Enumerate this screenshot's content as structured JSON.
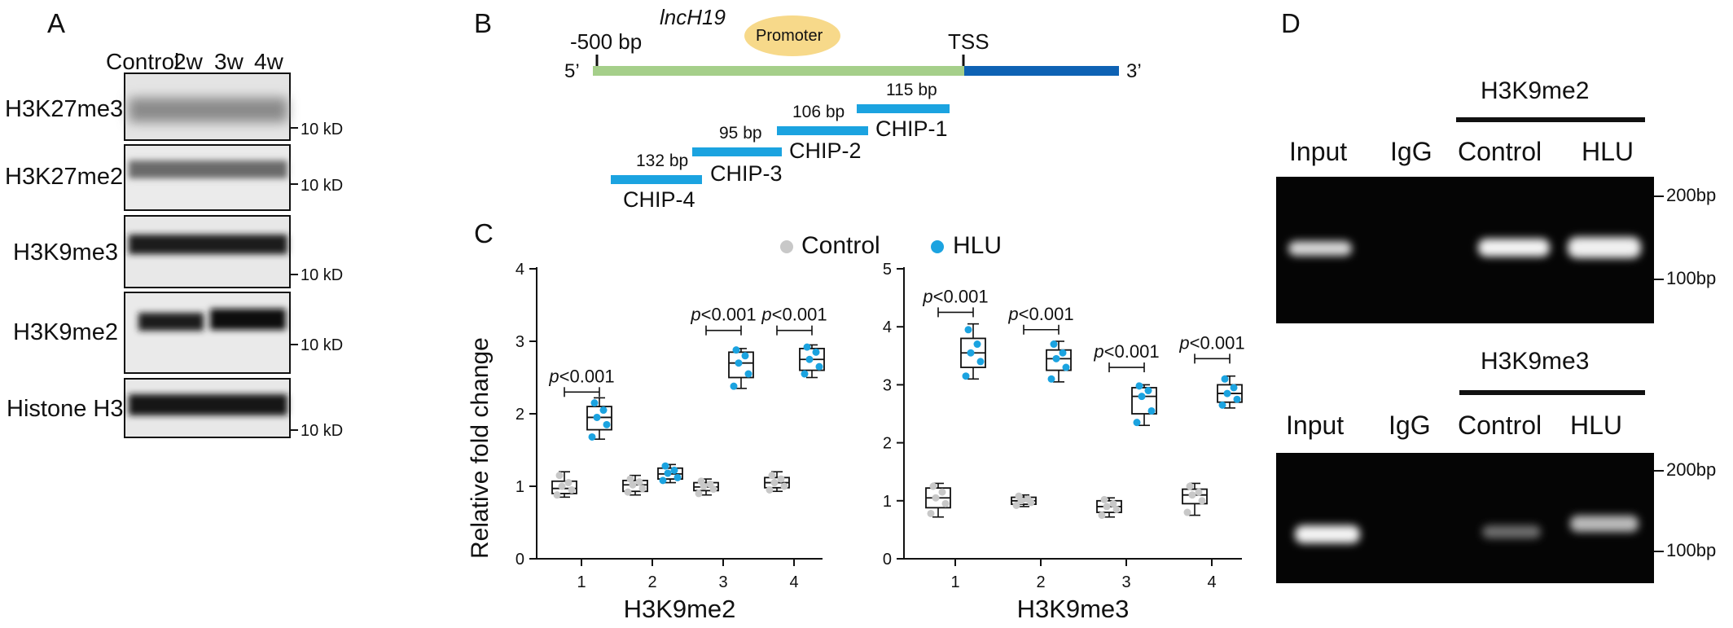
{
  "panels": {
    "a": {
      "letter": "A",
      "lanes": [
        "Control",
        "2w",
        "3w",
        "4w"
      ],
      "blots": [
        {
          "label": "H3K27me3",
          "marker": "10 kD"
        },
        {
          "label": "H3K27me2",
          "marker": "10 kD"
        },
        {
          "label": "H3K9me3",
          "marker": "10 kD"
        },
        {
          "label": "H3K9me2",
          "marker": "10 kD"
        },
        {
          "label": "Histone H3",
          "marker": "10 kD"
        }
      ]
    },
    "b": {
      "letter": "B",
      "gene": "lncH19",
      "promoter": "Promoter",
      "start_label": "-500 bp",
      "tss": "TSS",
      "five_prime": "5’",
      "three_prime": "3’",
      "amplicons": [
        {
          "name": "CHIP-1",
          "size": "115 bp"
        },
        {
          "name": "CHIP-2",
          "size": "106 bp"
        },
        {
          "name": "CHIP-3",
          "size": "95 bp"
        },
        {
          "name": "CHIP-4",
          "size": "132 bp"
        }
      ]
    },
    "c": {
      "letter": "C",
      "legend": [
        {
          "name": "Control",
          "color": "#c8c8c8"
        },
        {
          "name": "HLU",
          "color": "#1ba3e0"
        }
      ],
      "ylabel": "Relative fold change"
    },
    "d": {
      "letter": "D",
      "gels": [
        {
          "title": "H3K9me2",
          "lanes": [
            "Input",
            "IgG",
            "Control",
            "HLU"
          ],
          "markers": [
            "200bp",
            "100bp"
          ]
        },
        {
          "title": "H3K9me3",
          "lanes": [
            "Input",
            "IgG",
            "Control",
            "HLU"
          ],
          "markers": [
            "200bp",
            "100bp"
          ]
        }
      ]
    }
  },
  "chart_data": [
    {
      "type": "box",
      "xlabel": "H3K9me2",
      "ylabel": "Relative fold change",
      "categories": [
        "1",
        "2",
        "3",
        "4"
      ],
      "ylim": [
        0,
        4
      ],
      "yticks": [
        0,
        1,
        2,
        3,
        4
      ],
      "series": [
        {
          "name": "Control",
          "color": "#c8c8c8",
          "box": [
            {
              "min": 0.85,
              "q1": 0.9,
              "median": 0.97,
              "q3": 1.07,
              "max": 1.2
            },
            {
              "min": 0.88,
              "q1": 0.93,
              "median": 1.02,
              "q3": 1.08,
              "max": 1.15
            },
            {
              "min": 0.88,
              "q1": 0.94,
              "median": 0.99,
              "q3": 1.05,
              "max": 1.1
            },
            {
              "min": 0.93,
              "q1": 0.98,
              "median": 1.05,
              "q3": 1.12,
              "max": 1.2
            }
          ],
          "points": [
            [
              0.88,
              0.95,
              1.0,
              1.05,
              1.15
            ],
            [
              0.92,
              0.97,
              1.02,
              1.06,
              1.1
            ],
            [
              0.9,
              0.96,
              1.0,
              1.03,
              1.07
            ],
            [
              0.95,
              1.0,
              1.05,
              1.1,
              1.15
            ]
          ]
        },
        {
          "name": "HLU",
          "color": "#1ba3e0",
          "box": [
            {
              "min": 1.65,
              "q1": 1.78,
              "median": 1.95,
              "q3": 2.1,
              "max": 2.22
            },
            {
              "min": 1.05,
              "q1": 1.1,
              "median": 1.17,
              "q3": 1.25,
              "max": 1.3
            },
            {
              "min": 2.35,
              "q1": 2.5,
              "median": 2.7,
              "q3": 2.85,
              "max": 2.9
            },
            {
              "min": 2.5,
              "q1": 2.6,
              "median": 2.75,
              "q3": 2.9,
              "max": 2.95
            }
          ],
          "points": [
            [
              1.68,
              1.85,
              1.95,
              2.05,
              2.15
            ],
            [
              1.08,
              1.12,
              1.18,
              1.22,
              1.28
            ],
            [
              2.38,
              2.55,
              2.7,
              2.8,
              2.88
            ],
            [
              2.55,
              2.65,
              2.75,
              2.85,
              2.92
            ]
          ]
        }
      ],
      "annotations": [
        {
          "category": "1",
          "label": "p<0.001",
          "y": 2.3
        },
        {
          "category": "3",
          "label": "p<0.001",
          "y": 3.15
        },
        {
          "category": "4",
          "label": "p<0.001",
          "y": 3.15
        }
      ]
    },
    {
      "type": "box",
      "xlabel": "H3K9me3",
      "ylabel": "",
      "categories": [
        "1",
        "2",
        "3",
        "4"
      ],
      "ylim": [
        0,
        5
      ],
      "yticks": [
        0,
        1,
        2,
        3,
        4,
        5
      ],
      "series": [
        {
          "name": "Control",
          "color": "#c8c8c8",
          "box": [
            {
              "min": 0.72,
              "q1": 0.88,
              "median": 1.05,
              "q3": 1.22,
              "max": 1.3
            },
            {
              "min": 0.9,
              "q1": 0.94,
              "median": 1.0,
              "q3": 1.06,
              "max": 1.1
            },
            {
              "min": 0.72,
              "q1": 0.8,
              "median": 0.9,
              "q3": 1.0,
              "max": 1.05
            },
            {
              "min": 0.75,
              "q1": 0.95,
              "median": 1.1,
              "q3": 1.2,
              "max": 1.3
            }
          ],
          "points": [
            [
              0.78,
              0.95,
              1.05,
              1.15,
              1.25
            ],
            [
              0.92,
              0.97,
              1.0,
              1.03,
              1.08
            ],
            [
              0.75,
              0.85,
              0.9,
              0.95,
              1.02
            ],
            [
              0.8,
              1.0,
              1.1,
              1.15,
              1.25
            ]
          ]
        },
        {
          "name": "HLU",
          "color": "#1ba3e0",
          "box": [
            {
              "min": 3.1,
              "q1": 3.3,
              "median": 3.55,
              "q3": 3.8,
              "max": 4.05
            },
            {
              "min": 3.05,
              "q1": 3.25,
              "median": 3.45,
              "q3": 3.6,
              "max": 3.75
            },
            {
              "min": 2.3,
              "q1": 2.5,
              "median": 2.8,
              "q3": 2.95,
              "max": 3.0
            },
            {
              "min": 2.6,
              "q1": 2.7,
              "median": 2.85,
              "q3": 3.0,
              "max": 3.15
            }
          ],
          "points": [
            [
              3.15,
              3.4,
              3.55,
              3.7,
              3.95
            ],
            [
              3.1,
              3.3,
              3.45,
              3.55,
              3.7
            ],
            [
              2.35,
              2.55,
              2.8,
              2.9,
              2.98
            ],
            [
              2.65,
              2.75,
              2.85,
              2.95,
              3.1
            ]
          ]
        }
      ],
      "annotations": [
        {
          "category": "1",
          "label": "p<0.001",
          "y": 4.25
        },
        {
          "category": "2",
          "label": "p<0.001",
          "y": 3.95
        },
        {
          "category": "3",
          "label": "p<0.001",
          "y": 3.3
        },
        {
          "category": "4",
          "label": "p<0.001",
          "y": 3.45
        }
      ]
    }
  ]
}
